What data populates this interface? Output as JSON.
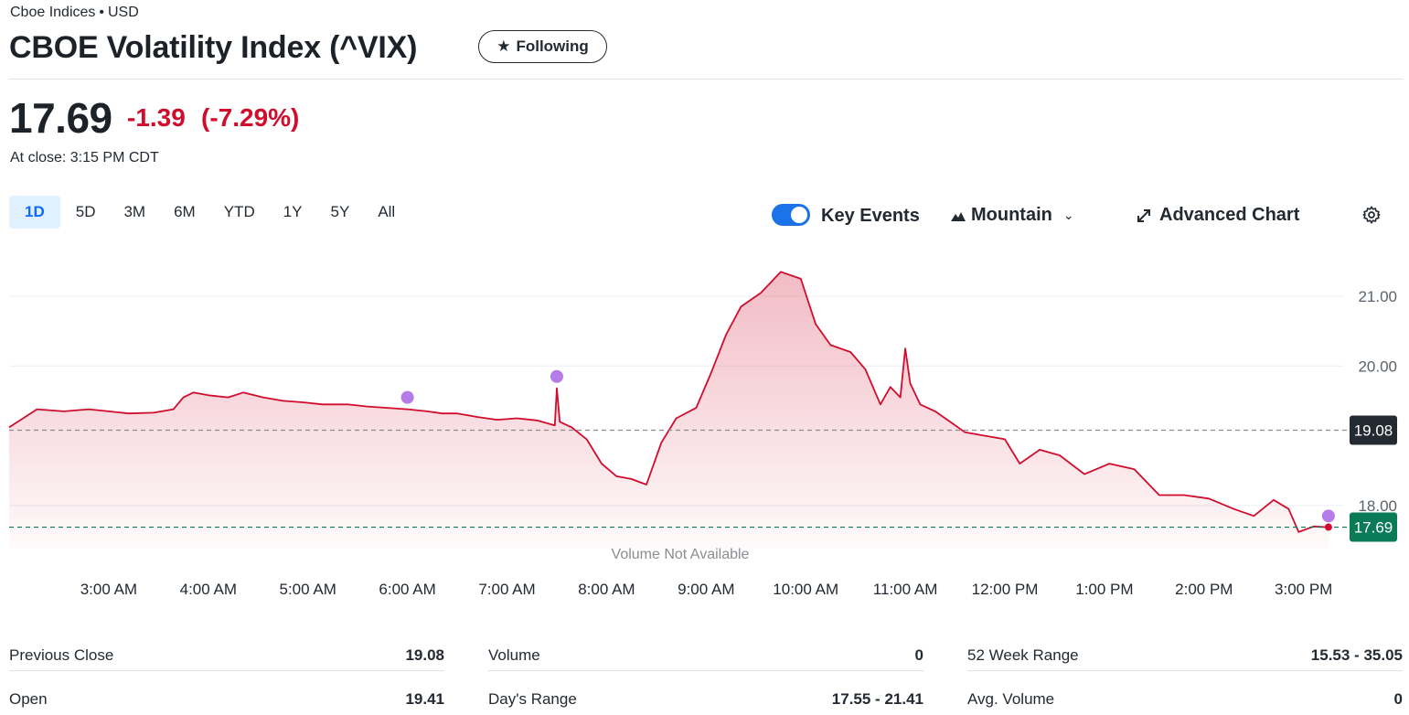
{
  "header": {
    "exchange": "Cboe Indices",
    "currency": "USD",
    "separator": "•",
    "title": "CBOE Volatility Index (^VIX)",
    "follow_label": "Following"
  },
  "quote": {
    "price": "17.69",
    "change": "-1.39",
    "change_pct": "(-7.29%)",
    "close_time": "At close: 3:15 PM CDT"
  },
  "ranges": [
    "1D",
    "5D",
    "3M",
    "6M",
    "YTD",
    "1Y",
    "5Y",
    "All"
  ],
  "active_range": "1D",
  "controls": {
    "key_events_label": "Key Events",
    "key_events_on": true,
    "chart_type_label": "Mountain",
    "advanced_label": "Advanced Chart"
  },
  "colors": {
    "line": "#d00d2d",
    "up": "#0a7a57",
    "event": "#b57be8",
    "active_tab": "#0f69ff",
    "toggle": "#1a73e8"
  },
  "chart_data": {
    "type": "area",
    "x_ticks": [
      "3:00 AM",
      "4:00 AM",
      "5:00 AM",
      "6:00 AM",
      "7:00 AM",
      "8:00 AM",
      "9:00 AM",
      "10:00 AM",
      "11:00 AM",
      "12:00 PM",
      "1:00 PM",
      "2:00 PM",
      "3:00 PM"
    ],
    "y_ticks": [
      "21.00",
      "20.00",
      "18.00"
    ],
    "ylim": [
      17.4,
      21.5
    ],
    "x_range_hours": [
      2.0,
      15.25
    ],
    "previous_close": 19.08,
    "previous_close_label": "19.08",
    "last_price": 17.69,
    "last_price_label": "17.69",
    "volume_note": "Volume Not Available",
    "points": [
      [
        2.0,
        19.12
      ],
      [
        2.28,
        19.38
      ],
      [
        2.55,
        19.35
      ],
      [
        2.8,
        19.38
      ],
      [
        3.0,
        19.35
      ],
      [
        3.2,
        19.32
      ],
      [
        3.45,
        19.33
      ],
      [
        3.65,
        19.38
      ],
      [
        3.75,
        19.55
      ],
      [
        3.85,
        19.62
      ],
      [
        4.0,
        19.58
      ],
      [
        4.2,
        19.55
      ],
      [
        4.35,
        19.62
      ],
      [
        4.55,
        19.55
      ],
      [
        4.75,
        19.5
      ],
      [
        4.95,
        19.48
      ],
      [
        5.15,
        19.45
      ],
      [
        5.4,
        19.45
      ],
      [
        5.6,
        19.42
      ],
      [
        5.8,
        19.4
      ],
      [
        6.0,
        19.38
      ],
      [
        6.2,
        19.35
      ],
      [
        6.35,
        19.32
      ],
      [
        6.5,
        19.32
      ],
      [
        6.7,
        19.27
      ],
      [
        6.9,
        19.23
      ],
      [
        7.1,
        19.25
      ],
      [
        7.3,
        19.22
      ],
      [
        7.48,
        19.15
      ],
      [
        7.5,
        19.68
      ],
      [
        7.53,
        19.2
      ],
      [
        7.65,
        19.12
      ],
      [
        7.8,
        18.95
      ],
      [
        7.95,
        18.6
      ],
      [
        8.1,
        18.42
      ],
      [
        8.25,
        18.38
      ],
      [
        8.4,
        18.3
      ],
      [
        8.55,
        18.9
      ],
      [
        8.7,
        19.25
      ],
      [
        8.9,
        19.4
      ],
      [
        9.05,
        19.9
      ],
      [
        9.2,
        20.45
      ],
      [
        9.35,
        20.85
      ],
      [
        9.55,
        21.05
      ],
      [
        9.75,
        21.35
      ],
      [
        9.95,
        21.25
      ],
      [
        10.1,
        20.6
      ],
      [
        10.25,
        20.3
      ],
      [
        10.45,
        20.2
      ],
      [
        10.6,
        19.95
      ],
      [
        10.75,
        19.45
      ],
      [
        10.85,
        19.7
      ],
      [
        10.95,
        19.55
      ],
      [
        11.0,
        20.25
      ],
      [
        11.05,
        19.75
      ],
      [
        11.15,
        19.45
      ],
      [
        11.3,
        19.35
      ],
      [
        11.45,
        19.2
      ],
      [
        11.6,
        19.05
      ],
      [
        11.8,
        19.0
      ],
      [
        12.0,
        18.95
      ],
      [
        12.15,
        18.6
      ],
      [
        12.35,
        18.8
      ],
      [
        12.55,
        18.72
      ],
      [
        12.8,
        18.45
      ],
      [
        13.05,
        18.6
      ],
      [
        13.3,
        18.52
      ],
      [
        13.55,
        18.15
      ],
      [
        13.8,
        18.15
      ],
      [
        14.05,
        18.1
      ],
      [
        14.3,
        17.95
      ],
      [
        14.5,
        17.85
      ],
      [
        14.7,
        18.08
      ],
      [
        14.85,
        17.95
      ],
      [
        14.95,
        17.62
      ],
      [
        15.1,
        17.7
      ],
      [
        15.25,
        17.69
      ]
    ],
    "key_events": [
      [
        6.0,
        19.55
      ],
      [
        7.5,
        19.85
      ],
      [
        15.25,
        17.85
      ]
    ]
  },
  "stats": [
    {
      "label": "Previous Close",
      "value": "19.08"
    },
    {
      "label": "Volume",
      "value": "0"
    },
    {
      "label": "52 Week Range",
      "value": "15.53 - 35.05"
    },
    {
      "label": "Open",
      "value": "19.41"
    },
    {
      "label": "Day's Range",
      "value": "17.55 - 21.41"
    },
    {
      "label": "Avg. Volume",
      "value": "0"
    }
  ]
}
